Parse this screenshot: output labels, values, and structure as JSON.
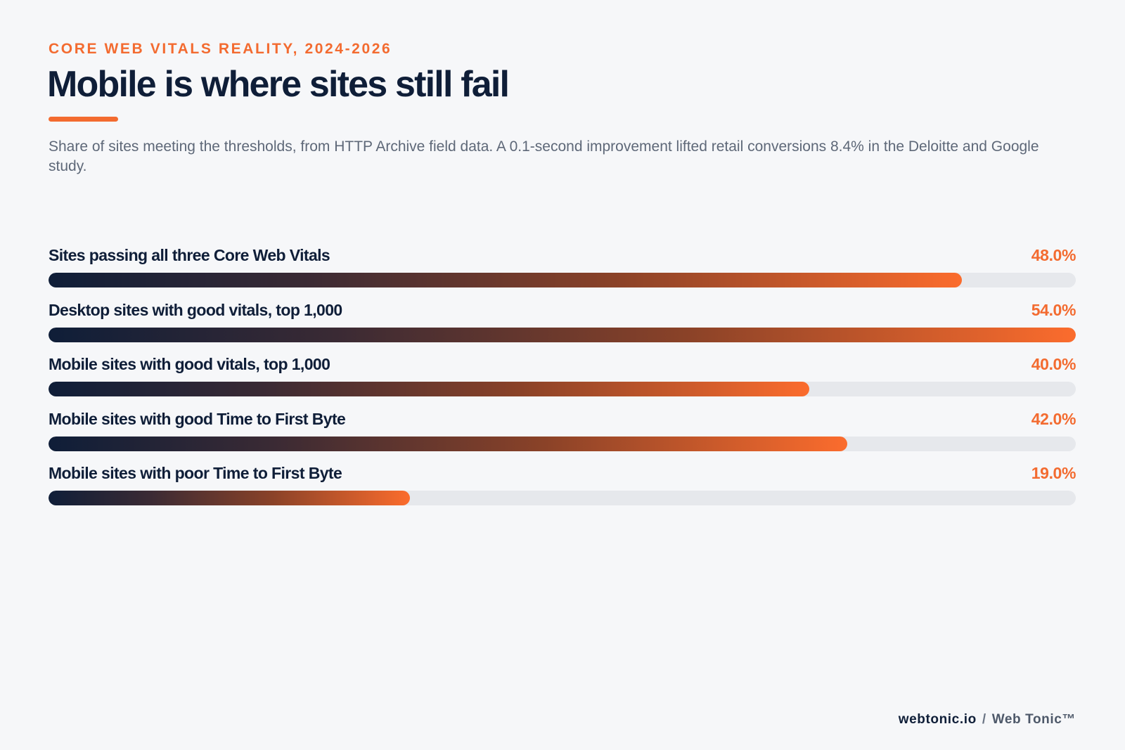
{
  "header": {
    "eyebrow": "CORE WEB VITALS REALITY, 2024-2026",
    "title": "Mobile is where sites still fail",
    "subtitle": "Share of sites meeting the thresholds, from HTTP Archive field data. A 0.1-second improvement lifted retail conversions 8.4% in the Deloitte and Google study."
  },
  "colors": {
    "accent": "#f36b30",
    "navy": "#0f1e38",
    "track": "#e6e8ec",
    "background": "#f6f7f9"
  },
  "chart_data": {
    "type": "bar",
    "orientation": "horizontal",
    "title": "Mobile is where sites still fail",
    "categories": [
      "Sites passing all three Core Web Vitals",
      "Desktop sites with good vitals, top 1,000",
      "Mobile sites with good vitals, top 1,000",
      "Mobile sites with good Time to First Byte",
      "Mobile sites with poor Time to First Byte"
    ],
    "values": [
      48.0,
      54.0,
      40.0,
      42.0,
      19.0
    ],
    "value_labels": [
      "48.0%",
      "54.0%",
      "40.0%",
      "42.0%",
      "19.0%"
    ],
    "unit": "%",
    "xlim": [
      0,
      54
    ],
    "grid": false,
    "legend": "none"
  },
  "footer": {
    "site": "webtonic.io",
    "separator": "/",
    "brand": "Web Tonic™"
  }
}
